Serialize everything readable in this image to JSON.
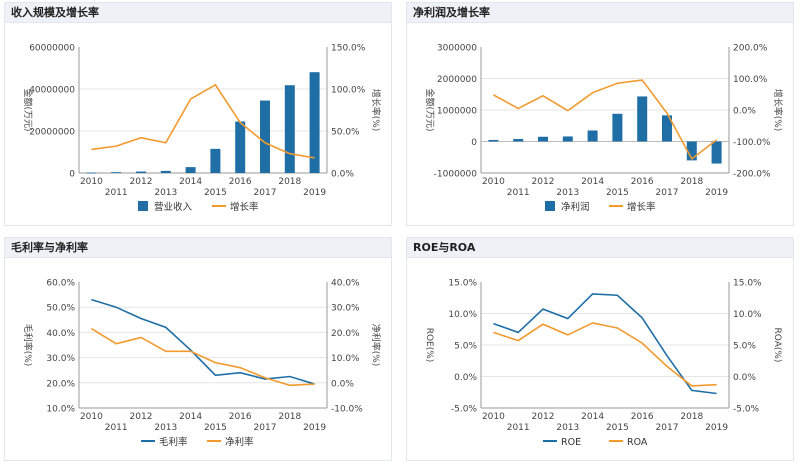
{
  "colors": {
    "primary": "#1f6fa6",
    "secondary": "#f29a2e",
    "axis": "#999999",
    "grid": "#e5e5e5"
  },
  "panels": [
    {
      "title": "收入规模及增长率"
    },
    {
      "title": "净利润及增长率"
    },
    {
      "title": "毛利率与净利率"
    },
    {
      "title": "ROE与ROA"
    }
  ],
  "chart_data": [
    {
      "type": "bar",
      "title": "收入规模及增长率",
      "categories": [
        "2010",
        "2011",
        "2012",
        "2013",
        "2014",
        "2015",
        "2016",
        "2017",
        "2018",
        "2019"
      ],
      "ylabel": "金额(万元)",
      "y2label": "增长率(%)",
      "ylim": [
        0,
        60000000
      ],
      "y2lim": [
        0,
        150
      ],
      "yticks": [
        "0",
        "20000000",
        "40000000",
        "60000000"
      ],
      "y2ticks": [
        "0.0%",
        "50.0%",
        "100.0%",
        "150.0%"
      ],
      "series": [
        {
          "name": "营业收入",
          "type": "bar",
          "axis": "left",
          "values": [
            200000,
            400000,
            700000,
            1000000,
            2800000,
            11500000,
            24500000,
            34500000,
            41800000,
            48000000
          ]
        },
        {
          "name": "增长率",
          "type": "line",
          "axis": "right",
          "values": [
            28,
            32,
            42,
            36,
            88,
            105,
            60,
            36,
            23,
            18
          ]
        }
      ],
      "legend": "bottom"
    },
    {
      "type": "bar",
      "title": "净利润及增长率",
      "categories": [
        "2010",
        "2011",
        "2012",
        "2013",
        "2014",
        "2015",
        "2016",
        "2017",
        "2018",
        "2019"
      ],
      "ylabel": "金额(万元)",
      "y2label": "增长率(%)",
      "ylim": [
        -1000000,
        3000000
      ],
      "y2lim": [
        -200,
        200
      ],
      "yticks": [
        "-1000000",
        "0",
        "1000000",
        "2000000",
        "3000000"
      ],
      "y2ticks": [
        "-200.0%",
        "-100.0%",
        "0.0%",
        "100.0%",
        "200.0%"
      ],
      "series": [
        {
          "name": "净利润",
          "type": "bar",
          "axis": "left",
          "values": [
            50000,
            80000,
            150000,
            160000,
            350000,
            880000,
            1430000,
            830000,
            -600000,
            -700000
          ]
        },
        {
          "name": "增长率",
          "type": "line",
          "axis": "right",
          "values": [
            48,
            5,
            45,
            -2,
            55,
            85,
            95,
            -10,
            -155,
            -95
          ]
        }
      ],
      "legend": "bottom"
    },
    {
      "type": "line",
      "title": "毛利率与净利率",
      "categories": [
        "2010",
        "2011",
        "2012",
        "2013",
        "2014",
        "2015",
        "2016",
        "2017",
        "2018",
        "2019"
      ],
      "ylabel": "毛利率(%)",
      "y2label": "净利率(%)",
      "ylim": [
        10,
        60
      ],
      "y2lim": [
        -10,
        40
      ],
      "yticks": [
        "10.0%",
        "20.0%",
        "30.0%",
        "40.0%",
        "50.0%",
        "60.0%"
      ],
      "y2ticks": [
        "-10.0%",
        "0.0%",
        "10.0%",
        "20.0%",
        "30.0%",
        "40.0%"
      ],
      "series": [
        {
          "name": "毛利率",
          "axis": "left",
          "values": [
            53,
            50,
            45.5,
            42,
            33,
            23,
            24,
            21.5,
            22.5,
            19.5
          ]
        },
        {
          "name": "净利率",
          "axis": "right",
          "values": [
            21.5,
            15.5,
            18,
            12.5,
            12.5,
            8,
            6,
            2,
            -1,
            -0.5
          ]
        }
      ],
      "legend": "bottom"
    },
    {
      "type": "line",
      "title": "ROE与ROA",
      "categories": [
        "2010",
        "2011",
        "2012",
        "2013",
        "2014",
        "2015",
        "2016",
        "2017",
        "2018",
        "2019"
      ],
      "ylabel": "ROE(%)",
      "y2label": "ROA(%)",
      "ylim": [
        -5,
        15
      ],
      "y2lim": [
        -5,
        15
      ],
      "yticks": [
        "-5.0%",
        "0.0%",
        "5.0%",
        "10.0%",
        "15.0%"
      ],
      "y2ticks": [
        "-5.0%",
        "0.0%",
        "5.0%",
        "10.0%",
        "15.0%"
      ],
      "series": [
        {
          "name": "ROE",
          "axis": "left",
          "values": [
            8.4,
            7,
            10.7,
            9.2,
            13.1,
            12.9,
            9.3,
            3.3,
            -2.2,
            -2.7
          ]
        },
        {
          "name": "ROA",
          "axis": "right",
          "values": [
            7,
            5.7,
            8.3,
            6.6,
            8.5,
            7.7,
            5.3,
            1.6,
            -1.5,
            -1.3
          ]
        }
      ],
      "legend": "bottom"
    }
  ]
}
